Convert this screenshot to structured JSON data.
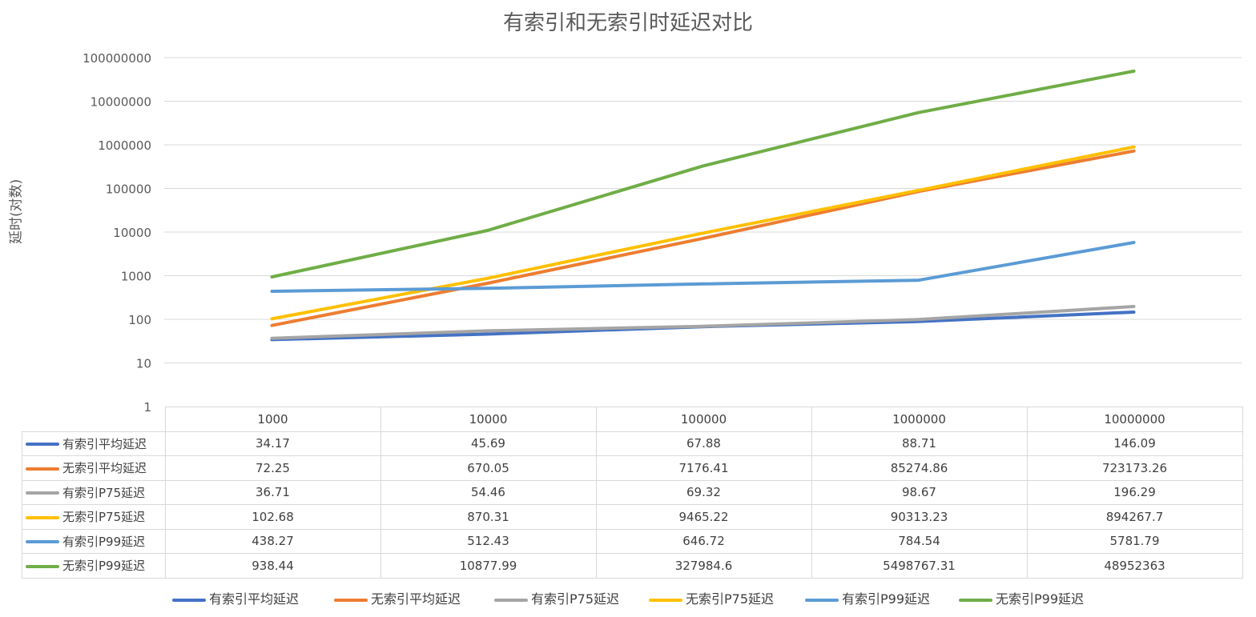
{
  "chart_data": {
    "type": "line",
    "title": "有索引和无索引时延迟对比",
    "ylabel": "延时(对数)",
    "yscale": "log",
    "ylim": [
      1,
      100000000
    ],
    "yticks": [
      "1",
      "10",
      "100",
      "1000",
      "10000",
      "100000",
      "1000000",
      "10000000",
      "100000000"
    ],
    "categories": [
      "1000",
      "10000",
      "100000",
      "1000000",
      "10000000"
    ],
    "grid": true,
    "legend_position": "bottom",
    "series": [
      {
        "name": "有索引平均延迟",
        "color": "#4472c4",
        "values": [
          34.17,
          45.69,
          67.88,
          88.71,
          146.09
        ],
        "labels": [
          "34.17",
          "45.69",
          "67.88",
          "88.71",
          "146.09"
        ]
      },
      {
        "name": "无索引平均延迟",
        "color": "#ed7d31",
        "values": [
          72.25,
          670.05,
          7176.41,
          85274.86,
          723173.26
        ],
        "labels": [
          "72.25",
          "670.05",
          "7176.41",
          "85274.86",
          "723173.26"
        ]
      },
      {
        "name": "有索引P75延迟",
        "color": "#a5a5a5",
        "values": [
          36.71,
          54.46,
          69.32,
          98.67,
          196.29
        ],
        "labels": [
          "36.71",
          "54.46",
          "69.32",
          "98.67",
          "196.29"
        ]
      },
      {
        "name": "无索引P75延迟",
        "color": "#ffc000",
        "values": [
          102.68,
          870.31,
          9465.22,
          90313.23,
          894267.7
        ],
        "labels": [
          "102.68",
          "870.31",
          "9465.22",
          "90313.23",
          "894267.7"
        ]
      },
      {
        "name": "有索引P99延迟",
        "color": "#5b9bd5",
        "values": [
          438.27,
          512.43,
          646.72,
          784.54,
          5781.79
        ],
        "labels": [
          "438.27",
          "512.43",
          "646.72",
          "784.54",
          "5781.79"
        ]
      },
      {
        "name": "无索引P99延迟",
        "color": "#70ad47",
        "values": [
          938.44,
          10877.99,
          327984.6,
          5498767.31,
          48952363
        ],
        "labels": [
          "938.44",
          "10877.99",
          "327984.6",
          "5498767.31",
          "48952363"
        ]
      }
    ]
  }
}
